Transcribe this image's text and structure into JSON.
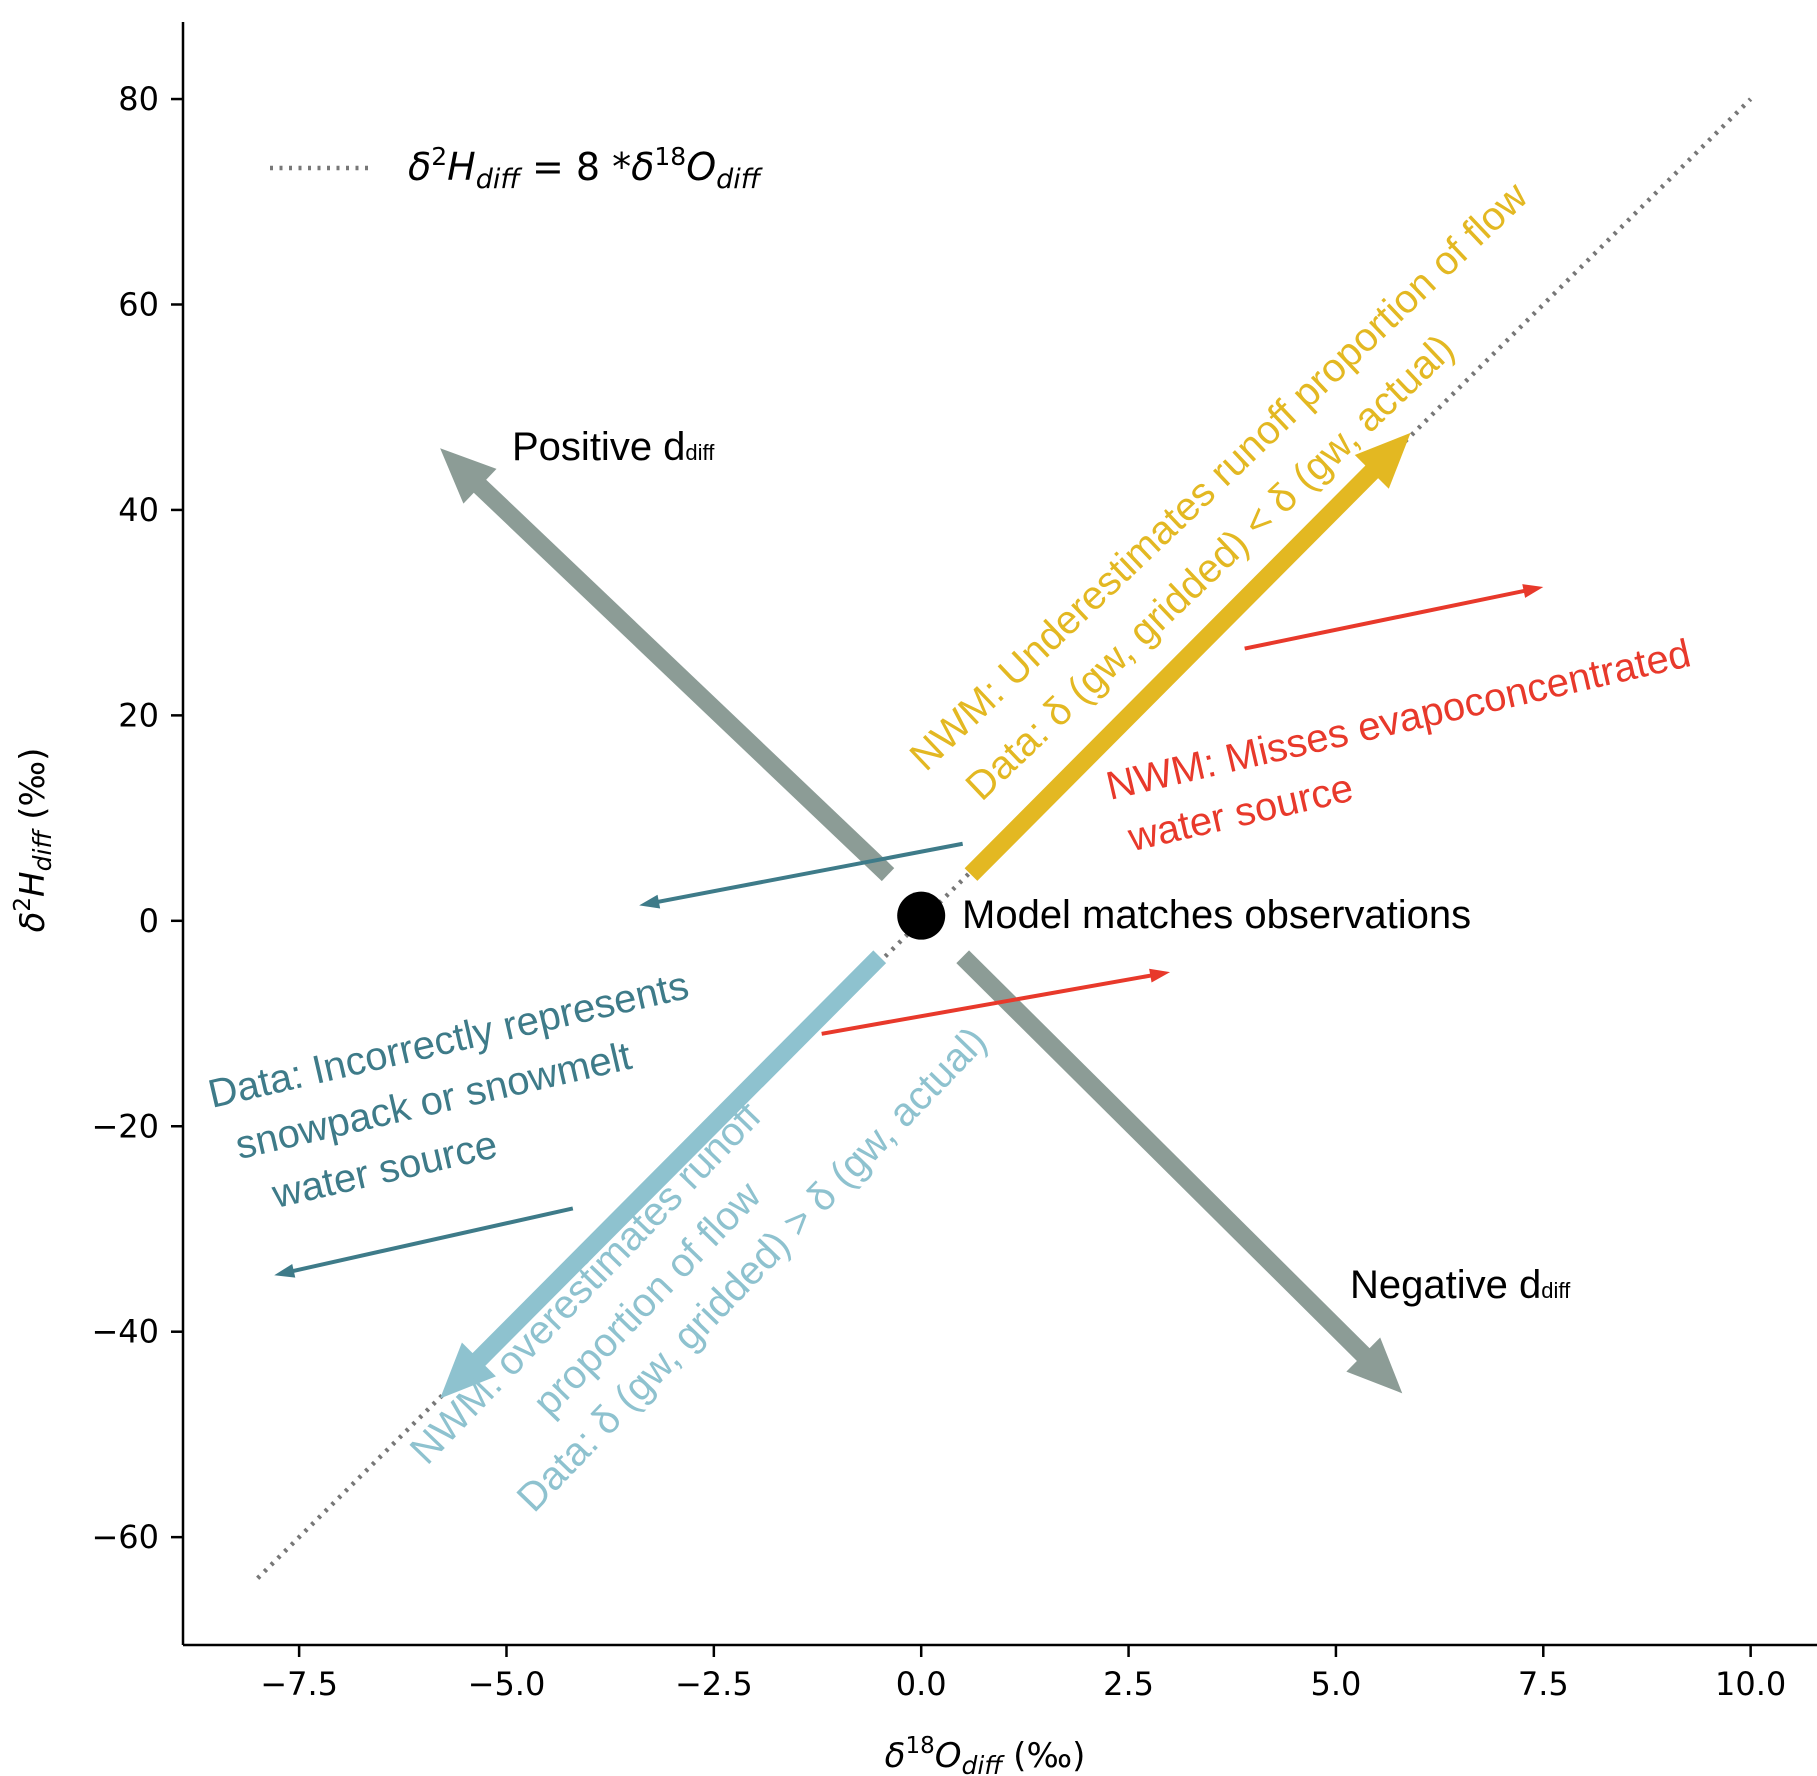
{
  "chart_data": {
    "type": "line",
    "xlabel": {
      "base": "δ",
      "sup": "18",
      "main": "O",
      "sub": "diff",
      "unit": " (‰)"
    },
    "ylabel": {
      "base": "δ",
      "sup": "2",
      "main": "H",
      "sub": "diff",
      "unit": "  (‰)"
    },
    "xlim": [
      -8.9,
      10.8
    ],
    "ylim": [
      -70.5,
      87.5
    ],
    "x_ticks": [
      -7.5,
      -5.0,
      -2.5,
      0.0,
      2.5,
      5.0,
      7.5,
      10.0
    ],
    "x_tick_labels": [
      "−7.5",
      "−5.0",
      "−2.5",
      "0.0",
      "2.5",
      "5.0",
      "7.5",
      "10.0"
    ],
    "y_ticks": [
      -60,
      -40,
      -20,
      0,
      20,
      40,
      60,
      80
    ],
    "y_tick_labels": [
      "−60",
      "−40",
      "−20",
      "0",
      "20",
      "40",
      "60",
      "80"
    ],
    "legend": {
      "placement": "top-left",
      "label_parts": {
        "b1": "δ",
        "s1": "2",
        "m1": "H",
        "d1": "diff",
        "mid": " = 8 *",
        "b2": "δ",
        "s2": "18",
        "m2": "O",
        "d2": "diff"
      }
    },
    "reference_line": {
      "style": "dotted",
      "color": "#777777",
      "x": [
        -8,
        10
      ],
      "y": [
        -64,
        80
      ]
    },
    "point": {
      "label": "Model matches observations",
      "x": 0,
      "y": 0.5,
      "color": "#000000"
    },
    "arrows": [
      {
        "id": "positive-d",
        "x": [
          -0.4,
          -5.8
        ],
        "y": [
          4.5,
          46
        ],
        "color": "#8c9c96",
        "width": "thick"
      },
      {
        "id": "negative-d",
        "x": [
          0.5,
          5.8
        ],
        "y": [
          -3.5,
          -46
        ],
        "color": "#8c9c96",
        "width": "thick"
      },
      {
        "id": "underestimates-runoff",
        "x": [
          0.6,
          5.9
        ],
        "y": [
          4.5,
          47.5
        ],
        "color": "#e3b822",
        "width": "thick"
      },
      {
        "id": "overestimates-runoff",
        "x": [
          -0.5,
          -5.8
        ],
        "y": [
          -3.5,
          -46.5
        ],
        "color": "#8ec2cf",
        "width": "thick"
      },
      {
        "id": "evapo-upper",
        "x": [
          3.9,
          7.5
        ],
        "y": [
          26.5,
          32.5
        ],
        "color": "#e8392b",
        "width": "thin"
      },
      {
        "id": "evapo-lower",
        "x": [
          -1.2,
          3.0
        ],
        "y": [
          -11,
          -5
        ],
        "color": "#e8392b",
        "width": "thin"
      },
      {
        "id": "snow-upper",
        "x": [
          0.5,
          -3.4
        ],
        "y": [
          7.5,
          1.5
        ],
        "color": "#3e7b89",
        "width": "thin"
      },
      {
        "id": "snow-lower",
        "x": [
          -4.2,
          -7.8
        ],
        "y": [
          -28,
          -34.5
        ],
        "color": "#3e7b89",
        "width": "thin"
      }
    ],
    "annotations": {
      "positive": {
        "main": "Positive d",
        "sub": "diff",
        "color": "#000000"
      },
      "negative": {
        "main": "Negative d",
        "sub": "diff",
        "color": "#000000"
      },
      "under_line1": "NWM: Underestimates runoff proportion of flow",
      "under_line2": "Data: δ (gw, gridded) < δ (gw, actual)",
      "under_color": "#e3b822",
      "over_line1": "NWM: overestimates runoff",
      "over_line2": "proportion of flow",
      "over_line3": "Data: δ (gw, gridded) > δ (gw, actual)",
      "over_color": "#8ec2cf",
      "evapo_line1": "NWM: Misses evapoconcentrated",
      "evapo_line2": "water source",
      "evapo_color": "#e8392b",
      "snow_line1": "Data: Incorrectly represents",
      "snow_line2": "snowpack or snowmelt",
      "snow_line3": "water source",
      "snow_color": "#3e7b89"
    }
  }
}
